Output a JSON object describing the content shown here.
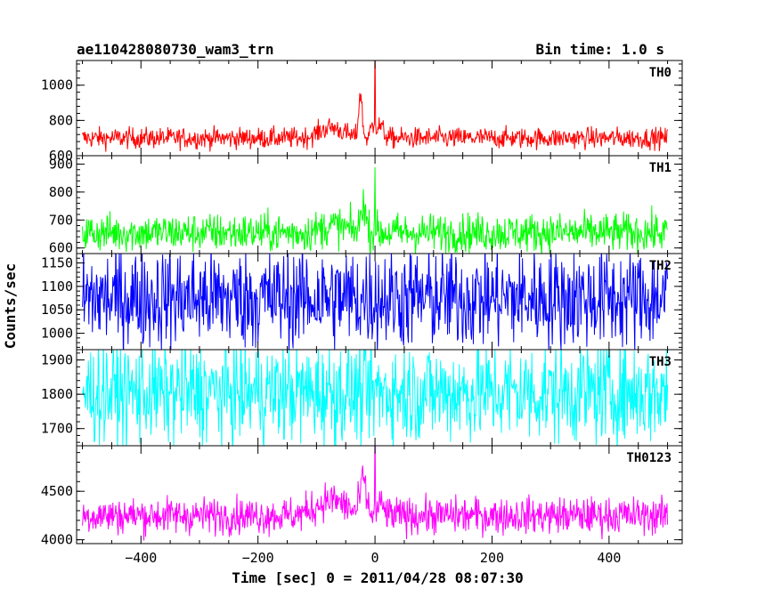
{
  "chart_data": {
    "type": "line",
    "title": "ae110428080730_wam3_trn",
    "subtitle": "Bin time: 1.0 s",
    "xlabel": "Time [sec] 0 = 2011/04/28 08:07:30",
    "ylabel": "Counts/sec",
    "xlim": [
      -510,
      525
    ],
    "x_ticks": [
      -400,
      -200,
      0,
      200,
      400
    ],
    "x_range": [
      -500,
      500
    ],
    "bin_time_s": 1.0,
    "grid": false,
    "panels": [
      {
        "name": "TH0",
        "color": "#ff0000",
        "ylim": [
          600,
          1140
        ],
        "y_ticks": [
          600,
          800,
          1000
        ],
        "baseline": 700,
        "noise": 30,
        "peaks": [
          [
            -75,
            60,
            20
          ],
          [
            -25,
            250,
            3
          ],
          [
            -5,
            60,
            3
          ],
          [
            0,
            560,
            0.5
          ],
          [
            8,
            70,
            6
          ]
        ]
      },
      {
        "name": "TH1",
        "color": "#00ff00",
        "ylim": [
          580,
          930
        ],
        "y_ticks": [
          600,
          700,
          800,
          900
        ],
        "baseline": 655,
        "noise": 35,
        "peaks": [
          [
            -20,
            110,
            4
          ],
          [
            0,
            270,
            0.5
          ],
          [
            -70,
            25,
            20
          ]
        ]
      },
      {
        "name": "TH2",
        "color": "#0000ff",
        "ylim": [
          965,
          1170
        ],
        "y_ticks": [
          1000,
          1050,
          1100,
          1150
        ],
        "baseline": 1075,
        "noise": 55,
        "peaks": []
      },
      {
        "name": "TH3",
        "color": "#00ffff",
        "ylim": [
          1650,
          1930
        ],
        "y_ticks": [
          1700,
          1800,
          1900
        ],
        "baseline": 1805,
        "noise": 75,
        "peaks": []
      },
      {
        "name": "TH0123",
        "color": "#ff00ff",
        "ylim": [
          3960,
          4970
        ],
        "y_ticks": [
          4000,
          4500
        ],
        "baseline": 4250,
        "noise": 95,
        "peaks": [
          [
            -75,
            160,
            25
          ],
          [
            -20,
            360,
            5
          ],
          [
            0,
            730,
            0.5
          ],
          [
            10,
            100,
            6
          ]
        ]
      }
    ]
  }
}
